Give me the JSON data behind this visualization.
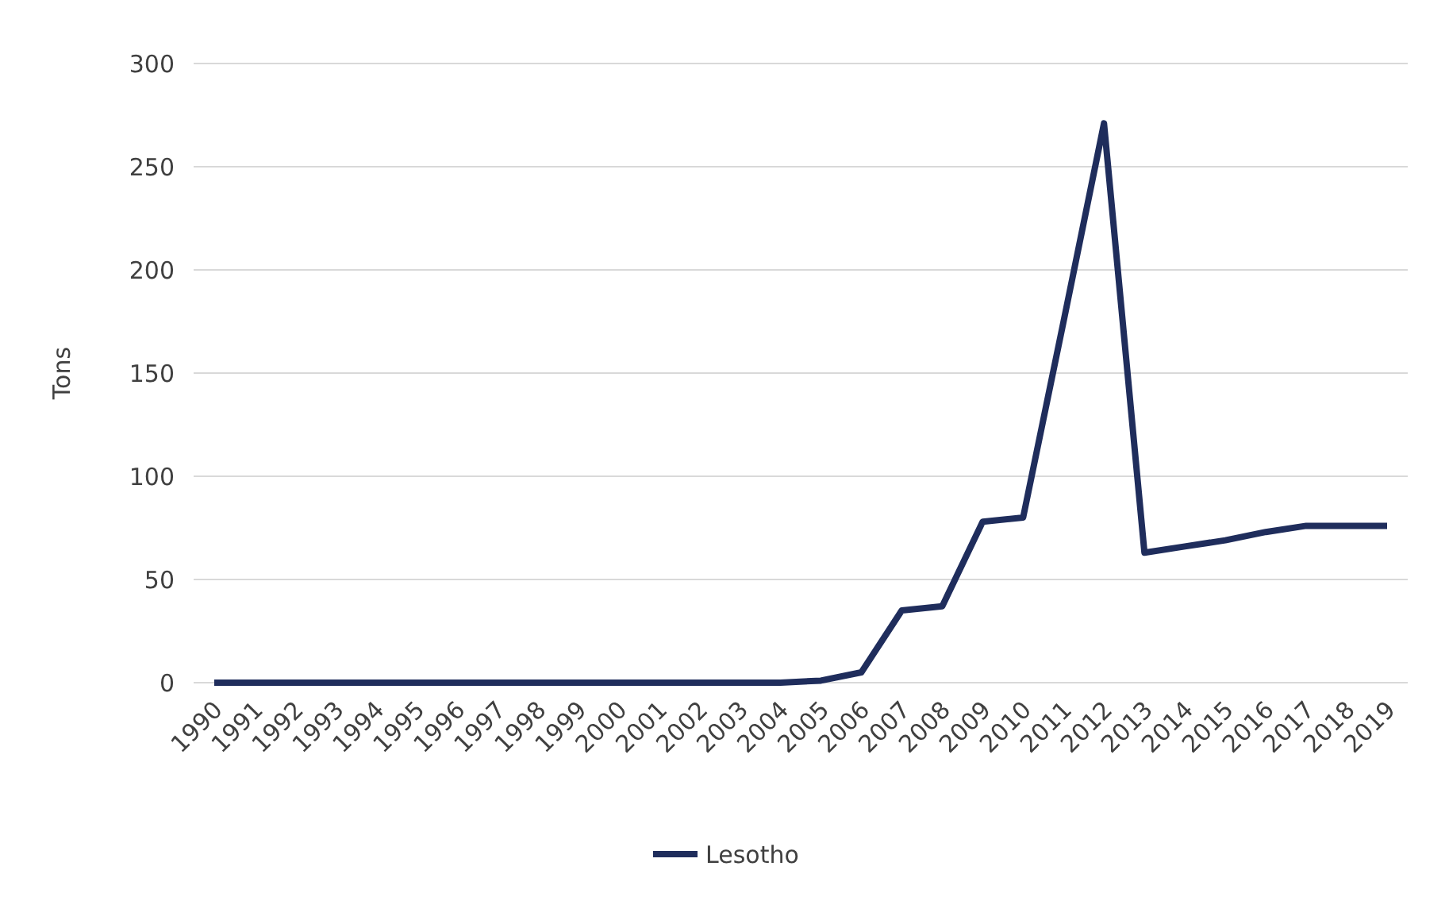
{
  "chart_data": {
    "type": "line",
    "ylabel": "Tons",
    "categories": [
      "1990",
      "1991",
      "1992",
      "1993",
      "1994",
      "1995",
      "1996",
      "1997",
      "1998",
      "1999",
      "2000",
      "2001",
      "2002",
      "2003",
      "2004",
      "2005",
      "2006",
      "2007",
      "2008",
      "2009",
      "2010",
      "2011",
      "2012",
      "2013",
      "2014",
      "2015",
      "2016",
      "2017",
      "2018",
      "2019"
    ],
    "series": [
      {
        "name": "Lesotho",
        "color": "#1f2d5c",
        "values": [
          0,
          0,
          0,
          0,
          0,
          0,
          0,
          0,
          0,
          0,
          0,
          0,
          0,
          0,
          0,
          1,
          5,
          35,
          37,
          78,
          80,
          175,
          271,
          63,
          66,
          69,
          73,
          76,
          76,
          76
        ]
      }
    ],
    "ylim": [
      0,
      300
    ],
    "yticks": [
      0,
      50,
      100,
      150,
      200,
      250,
      300
    ],
    "grid": "y",
    "legend": "bottom",
    "marker": "none",
    "line_style": "solid"
  }
}
